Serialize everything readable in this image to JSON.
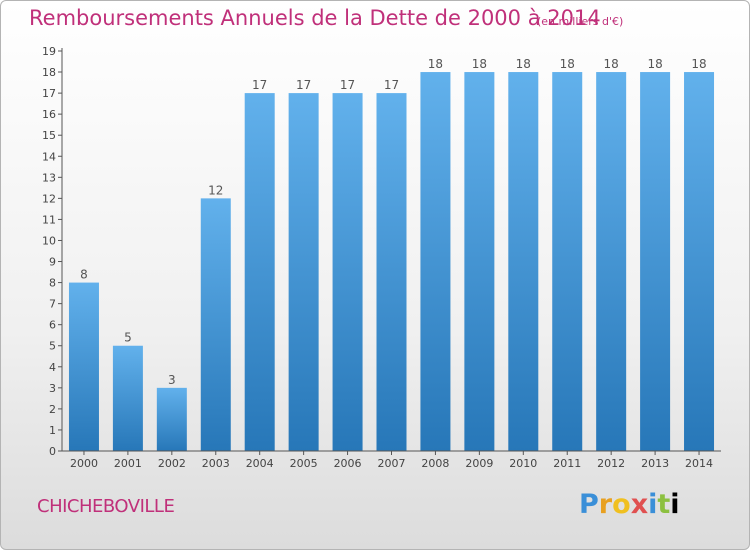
{
  "title": "Remboursements Annuels de la Dette de 2000 à 2014",
  "unit_note": "(en milliers d'€)",
  "place_name": "CHICHEBOVILLE",
  "logo_letters": [
    "P",
    "r",
    "o",
    "x",
    "i",
    "t",
    "i"
  ],
  "colors": {
    "title": "#c0307a",
    "bar_light": "#62b1ec",
    "bar_dark": "#2777b8"
  },
  "chart_data": {
    "type": "bar",
    "title": "Remboursements Annuels de la Dette de 2000 à 2014",
    "subtitle": "(en milliers d'€)",
    "categories": [
      "2000",
      "2001",
      "2002",
      "2003",
      "2004",
      "2005",
      "2006",
      "2007",
      "2008",
      "2009",
      "2010",
      "2011",
      "2012",
      "2013",
      "2014"
    ],
    "values": [
      8,
      5,
      3,
      12,
      17,
      17,
      17,
      17,
      18,
      18,
      18,
      18,
      18,
      18,
      18
    ],
    "data_labels": [
      "8",
      "5",
      "3",
      "12",
      "17",
      "17",
      "17",
      "17",
      "18",
      "18",
      "18",
      "18",
      "18",
      "18",
      "18"
    ],
    "xlabel": "",
    "ylabel": "",
    "ylim": [
      0,
      19
    ],
    "yticks": [
      0,
      1,
      2,
      3,
      4,
      5,
      6,
      7,
      8,
      9,
      10,
      11,
      12,
      13,
      14,
      15,
      16,
      17,
      18,
      19
    ],
    "grid": false,
    "legend": "none"
  }
}
